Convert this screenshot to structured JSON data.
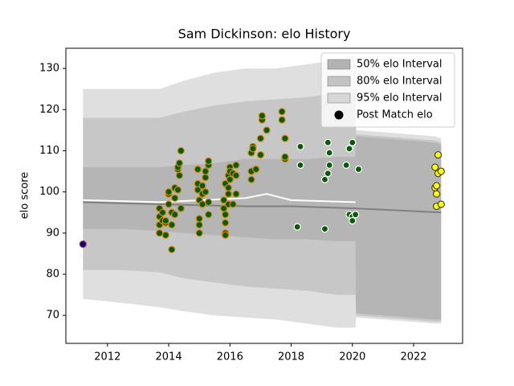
{
  "chart_data": {
    "type": "line",
    "title": "Sam Dickinson: elo History",
    "y_label": "elo score",
    "xlim": [
      2010.64,
      2023.6
    ],
    "ylim": [
      63.2,
      134.9
    ],
    "xticks": [
      2012,
      2014,
      2016,
      2018,
      2020,
      2022
    ],
    "yticks": [
      70,
      80,
      90,
      100,
      110,
      120,
      130
    ],
    "legend": "upper right",
    "series": [
      {
        "name": "95% elo Interval",
        "type": "band",
        "color": "#808080",
        "alpha": 0.25,
        "x": [
          2011.2,
          2012.5,
          2013.7,
          2014.5,
          2015.5,
          2016.5,
          2017.5,
          2018.5,
          2019.5,
          2020.1,
          2020.12,
          2021,
          2022.7,
          2022.9
        ],
        "upper": [
          125,
          125,
          125,
          127,
          129,
          130,
          130,
          131,
          132,
          132,
          115,
          114.5,
          113.5,
          113
        ],
        "lower": [
          74,
          73,
          72,
          71,
          70,
          69.5,
          69,
          68,
          67,
          67,
          69.5,
          69,
          68,
          68
        ]
      },
      {
        "name": "80% elo Interval",
        "type": "band",
        "color": "#808080",
        "alpha": 0.25,
        "x": [
          2011.2,
          2012.5,
          2013.7,
          2014.5,
          2015.5,
          2016.5,
          2017.5,
          2018.5,
          2019.5,
          2020.1,
          2020.12,
          2021,
          2022.7,
          2022.9
        ],
        "upper": [
          118,
          118,
          118,
          119.5,
          121,
          122,
          122.5,
          123,
          124,
          124,
          114,
          113.5,
          112.5,
          112
        ],
        "lower": [
          81,
          81,
          80.5,
          79,
          78,
          77,
          76.5,
          76,
          75,
          75,
          70,
          69.5,
          68.5,
          68.5
        ]
      },
      {
        "name": "50% elo Interval",
        "type": "band",
        "color": "#808080",
        "alpha": 0.25,
        "x": [
          2011.2,
          2012.5,
          2013.7,
          2014.5,
          2015.5,
          2016.5,
          2017.5,
          2018.5,
          2019.5,
          2020.1,
          2020.12,
          2021,
          2022.7,
          2022.9
        ],
        "upper": [
          106,
          106,
          106,
          106.5,
          107,
          108,
          108,
          108,
          108.5,
          108.5,
          113.5,
          113,
          112,
          111.5
        ],
        "lower": [
          91,
          91,
          90.5,
          90,
          89.5,
          89,
          88.5,
          88.5,
          88,
          88,
          70.5,
          70,
          69,
          69
        ]
      },
      {
        "type": "line",
        "color": "#808080",
        "width": 2,
        "x": [
          2011.2,
          2013.7,
          2016.5,
          2018,
          2020.1,
          2022.9
        ],
        "values": [
          97.5,
          97,
          96.5,
          96.5,
          96,
          95
        ]
      },
      {
        "type": "line",
        "color": "#ffffff",
        "width": 2,
        "x": [
          2011.2,
          2013.7,
          2016.5,
          2017.2,
          2018,
          2020.1
        ],
        "values": [
          98,
          97.5,
          98.5,
          99.5,
          98,
          97.5
        ]
      },
      {
        "name": "Post Match elo",
        "type": "scatter",
        "color": "#000000",
        "groups": [
          {
            "fill": "#000080",
            "edge": "#c03030",
            "x": [
              2011.2
            ],
            "values": [
              87.3
            ]
          },
          {
            "fill": "#0a5a0a",
            "edge": "#d08a10",
            "x": [
              2013.7,
              2013.7,
              2013.7,
              2013.7,
              2013.8,
              2013.8,
              2013.9,
              2013.9,
              2013.9,
              2014.0,
              2014.0,
              2014.0,
              2014.1,
              2014.1,
              2014.1,
              2014.2,
              2014.2,
              2014.2,
              2014.3,
              2014.3,
              2014.3,
              2014.35,
              2014.35,
              2014.4,
              2014.4,
              2014.95,
              2014.95,
              2014.95,
              2015.0,
              2015.0,
              2015.0,
              2015.0,
              2015.1,
              2015.1,
              2015.1,
              2015.2,
              2015.2,
              2015.2,
              2015.3,
              2015.3,
              2015.3,
              2015.3,
              2015.8,
              2015.8,
              2015.85,
              2015.85,
              2015.85,
              2015.85,
              2015.85,
              2015.95,
              2015.95,
              2015.95,
              2015.95,
              2016.0,
              2016.0,
              2016.0,
              2016.1,
              2016.1,
              2016.2,
              2016.2,
              2016.2,
              2016.7,
              2016.7,
              2016.7,
              2016.75,
              2016.75,
              2016.85,
              2017.0,
              2017.0,
              2017.05,
              2017.05,
              2017.2,
              2017.7,
              2017.7,
              2017.8,
              2017.8,
              2017.8
            ],
            "values": [
              96,
              94,
              92,
              90,
              95,
              93,
              89.5,
              92.5,
              93,
              99.5,
              100,
              97,
              95,
              86,
              92,
              94.5,
              98.5,
              101,
              105.5,
              106,
              100.5,
              107,
              104,
              110,
              96,
              102,
              100.5,
              105.5,
              98,
              92,
              90,
              93.5,
              101.5,
              97,
              99.5,
              103.5,
              100,
              105,
              106.5,
              107.5,
              94.5,
              97.5,
              98,
              96,
              92.5,
              90,
              89.5,
              94.5,
              102,
              101,
              104,
              99.5,
              97,
              106,
              105,
              103,
              104.5,
              97,
              106.5,
              104,
              99.5,
              103,
              105,
              109.5,
              111,
              110.5,
              105.5,
              113,
              109,
              117.5,
              118.5,
              115,
              119.5,
              117.5,
              108,
              108.5,
              113
            ]
          },
          {
            "fill": "#0a5a0a",
            "edge": "#ffffff",
            "x": [
              2018.2,
              2018.3,
              2018.3,
              2019.1,
              2019.1,
              2019.2,
              2019.2,
              2019.25,
              2019.25,
              2019.8,
              2019.9,
              2019.9,
              2020.0,
              2020.0,
              2020.0,
              2020.1,
              2020.2
            ],
            "values": [
              91.5,
              106.5,
              111,
              103,
              91,
              104.5,
              112,
              106.5,
              109.5,
              106.5,
              94.5,
              110.5,
              112,
              94,
              93,
              94.5,
              105.5
            ]
          },
          {
            "fill": "#ffff00",
            "edge": "#404040",
            "x": [
              2022.7,
              2022.7,
              2022.75,
              2022.75,
              2022.75,
              2022.8,
              2022.8,
              2022.9,
              2022.9
            ],
            "values": [
              106,
              101,
              99.5,
              101.5,
              96.5,
              109,
              104.5,
              105,
              97
            ]
          }
        ]
      }
    ]
  }
}
